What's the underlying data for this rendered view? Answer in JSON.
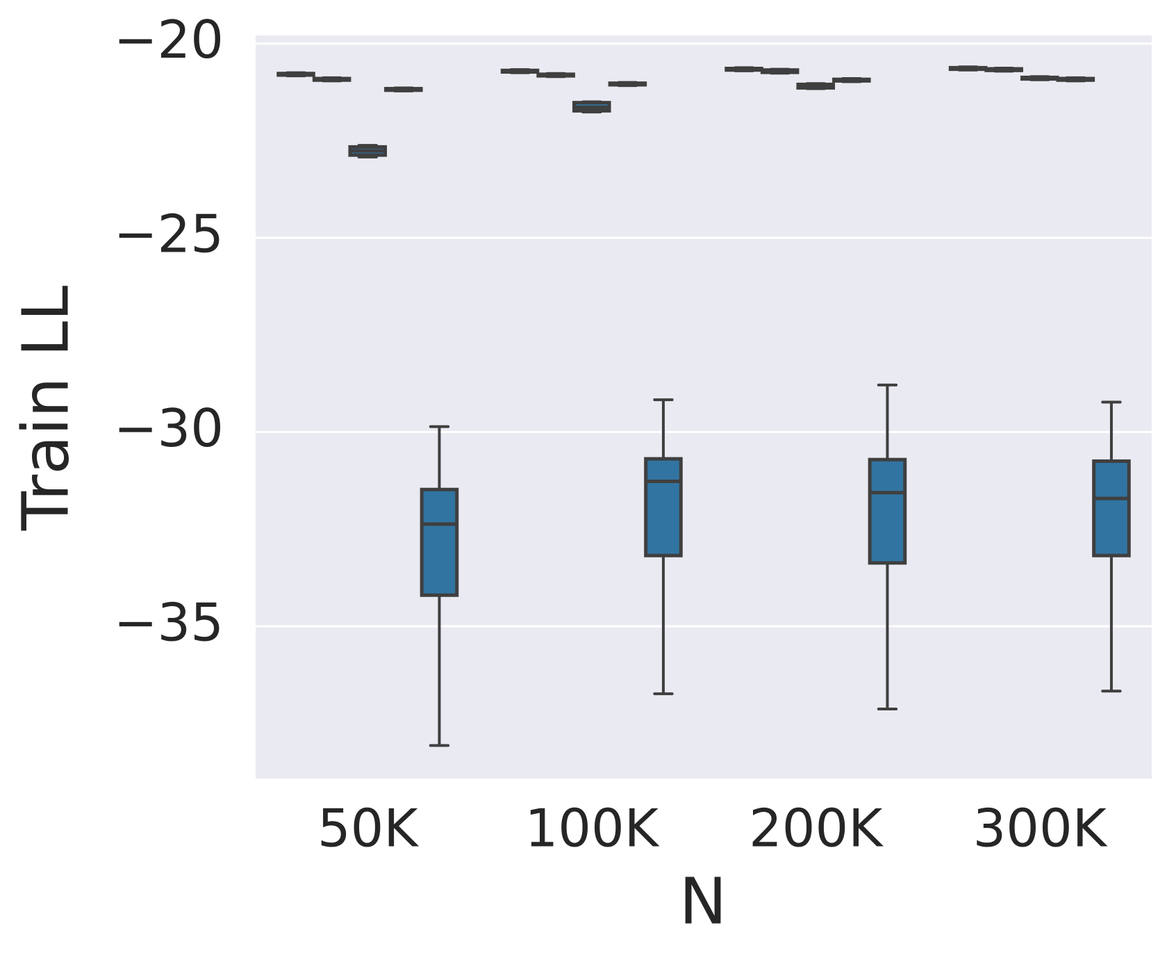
{
  "chart_data": {
    "type": "box",
    "x_label": "N",
    "y_label": "Train LL",
    "categories": [
      "50K",
      "100K",
      "200K",
      "300K"
    ],
    "ylim": [
      -38.92,
      -19.79
    ],
    "yticks": [
      {
        "value": -20,
        "label": "−20"
      },
      {
        "value": -25,
        "label": "−25"
      },
      {
        "value": -30,
        "label": "−30"
      },
      {
        "value": -35,
        "label": "−35"
      }
    ],
    "grid": true,
    "series": [
      {
        "color": "#3274a1",
        "values": [
          {
            "whislo": -20.83,
            "q1": -20.81,
            "med": -20.79,
            "q3": -20.77,
            "whishi": -20.75
          },
          {
            "whislo": -20.75,
            "q1": -20.73,
            "med": -20.71,
            "q3": -20.69,
            "whishi": -20.67
          },
          {
            "whislo": -20.7,
            "q1": -20.68,
            "med": -20.66,
            "q3": -20.64,
            "whishi": -20.62
          },
          {
            "whislo": -20.68,
            "q1": -20.66,
            "med": -20.64,
            "q3": -20.62,
            "whishi": -20.6
          }
        ]
      },
      {
        "color": "#3274a1",
        "values": [
          {
            "whislo": -20.96,
            "q1": -20.94,
            "med": -20.92,
            "q3": -20.9,
            "whishi": -20.88
          },
          {
            "whislo": -20.85,
            "q1": -20.83,
            "med": -20.81,
            "q3": -20.79,
            "whishi": -20.77
          },
          {
            "whislo": -20.76,
            "q1": -20.74,
            "med": -20.71,
            "q3": -20.68,
            "whishi": -20.66
          },
          {
            "whislo": -20.71,
            "q1": -20.69,
            "med": -20.67,
            "q3": -20.65,
            "whishi": -20.63
          }
        ]
      },
      {
        "color": "#3274a1",
        "values": [
          {
            "whislo": -22.92,
            "q1": -22.87,
            "med": -22.76,
            "q3": -22.66,
            "whishi": -22.62
          },
          {
            "whislo": -21.76,
            "q1": -21.73,
            "med": -21.64,
            "q3": -21.52,
            "whishi": -21.5
          },
          {
            "whislo": -21.16,
            "q1": -21.14,
            "med": -21.1,
            "q3": -21.05,
            "whishi": -21.03
          },
          {
            "whislo": -20.93,
            "q1": -20.91,
            "med": -20.89,
            "q3": -20.87,
            "whishi": -20.85
          }
        ]
      },
      {
        "color": "#3274a1",
        "values": [
          {
            "whislo": -21.22,
            "q1": -21.2,
            "med": -21.18,
            "q3": -21.16,
            "whishi": -21.14
          },
          {
            "whislo": -21.08,
            "q1": -21.06,
            "med": -21.04,
            "q3": -21.02,
            "whishi": -21.0
          },
          {
            "whislo": -20.98,
            "q1": -20.96,
            "med": -20.94,
            "q3": -20.92,
            "whishi": -20.9
          },
          {
            "whislo": -20.96,
            "q1": -20.94,
            "med": -20.92,
            "q3": -20.9,
            "whishi": -20.88
          }
        ]
      },
      {
        "color": "#3274a1",
        "values": [
          {
            "whislo": -38.07,
            "q1": -34.2,
            "med": -32.37,
            "q3": -31.48,
            "whishi": -29.86
          },
          {
            "whislo": -36.74,
            "q1": -33.18,
            "med": -31.27,
            "q3": -30.69,
            "whishi": -29.17
          },
          {
            "whislo": -37.13,
            "q1": -33.37,
            "med": -31.56,
            "q3": -30.71,
            "whishi": -28.79
          },
          {
            "whislo": -36.67,
            "q1": -33.18,
            "med": -31.71,
            "q3": -30.75,
            "whishi": -29.23
          }
        ]
      }
    ]
  }
}
